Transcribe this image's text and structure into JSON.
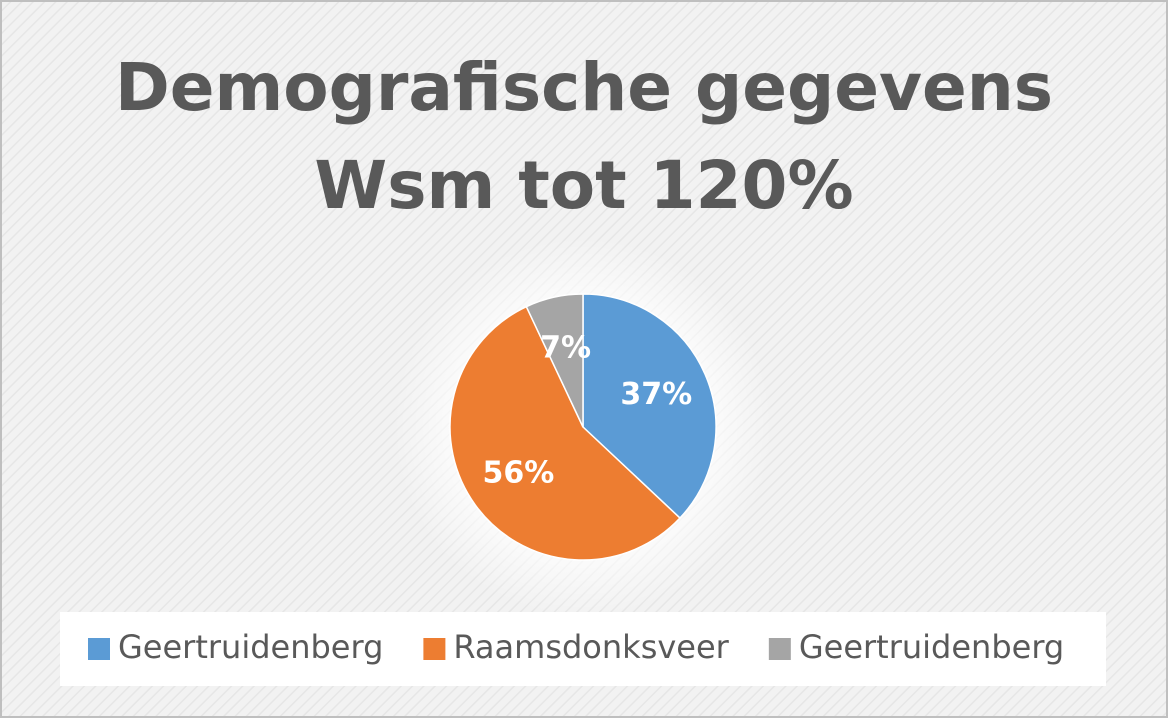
{
  "chart_data": {
    "type": "pie",
    "title": [
      "Demografische gegevens",
      "Wsm tot 120%"
    ],
    "categories": [
      "Geertruidenberg",
      "Raamsdonksveer",
      "Geertruidenberg"
    ],
    "values": [
      37,
      56,
      7
    ],
    "value_labels": [
      "37%",
      "56%",
      "7%"
    ],
    "colors": [
      "#5b9bd5",
      "#ed7d31",
      "#a5a5a5"
    ],
    "legend": "bottom"
  }
}
